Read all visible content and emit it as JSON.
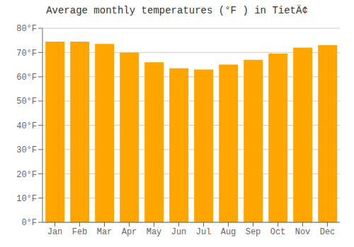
{
  "chart_data": {
    "type": "bar",
    "title": "Average monthly temperatures (°F ) in TietÄ¢",
    "categories": [
      "Jan",
      "Feb",
      "Mar",
      "Apr",
      "May",
      "Jun",
      "Jul",
      "Aug",
      "Sep",
      "Oct",
      "Nov",
      "Dec"
    ],
    "values": [
      74.5,
      74.5,
      73.5,
      70.0,
      66.0,
      63.5,
      63.0,
      65.0,
      67.0,
      69.5,
      72.0,
      73.0
    ],
    "color": "#FFA500",
    "ylim": [
      0,
      80
    ],
    "yticks": [
      {
        "value": 0,
        "label": "0°F"
      },
      {
        "value": 10,
        "label": "10°F"
      },
      {
        "value": 20,
        "label": "20°F"
      },
      {
        "value": 30,
        "label": "30°F"
      },
      {
        "value": 40,
        "label": "40°F"
      },
      {
        "value": 50,
        "label": "50°F"
      },
      {
        "value": 60,
        "label": "60°F"
      },
      {
        "value": 70,
        "label": "70°F"
      },
      {
        "value": 80,
        "label": "80°F"
      }
    ],
    "grid": true
  }
}
